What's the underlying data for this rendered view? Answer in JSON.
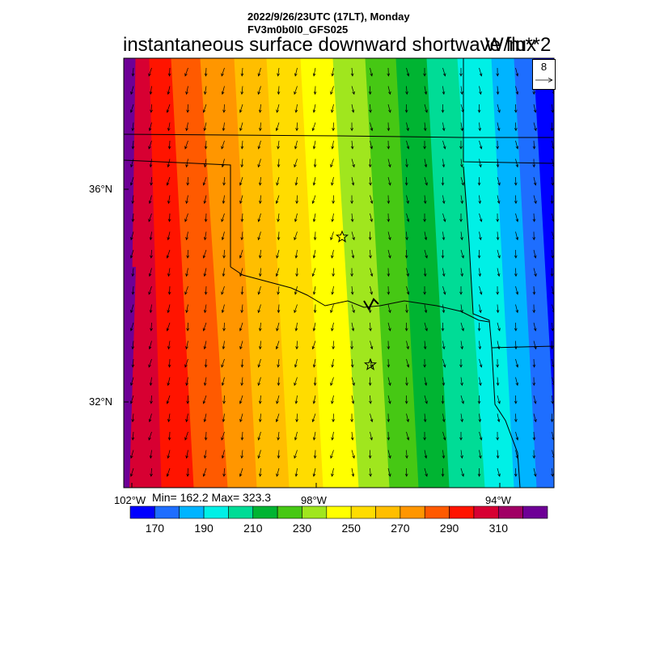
{
  "header": {
    "datetime": "2022/9/26/23UTC (17LT), Monday",
    "model": "FV3m0b0l0_GFS025"
  },
  "title": "instantaneous surface downward shortwave flux",
  "units": "W/m**2",
  "stats": {
    "text": "Min= 162.2 Max= 323.3"
  },
  "map": {
    "lat_labels": [
      "36°N",
      "32°N"
    ],
    "lon_labels": [
      "102°W",
      "98°W",
      "94°W"
    ],
    "markers": [
      "star",
      "star"
    ],
    "wind_reference": "8"
  },
  "colorbar": {
    "colors": [
      "#0000ff",
      "#1e6eff",
      "#00b4ff",
      "#00f0e6",
      "#00dc96",
      "#00b432",
      "#46c814",
      "#a0e61e",
      "#ffff00",
      "#ffdc00",
      "#ffbe00",
      "#ff9600",
      "#ff5a00",
      "#ff1400",
      "#d70032",
      "#a00064",
      "#6e0096"
    ],
    "labels": [
      "170",
      "190",
      "210",
      "230",
      "250",
      "270",
      "290",
      "310"
    ]
  }
}
